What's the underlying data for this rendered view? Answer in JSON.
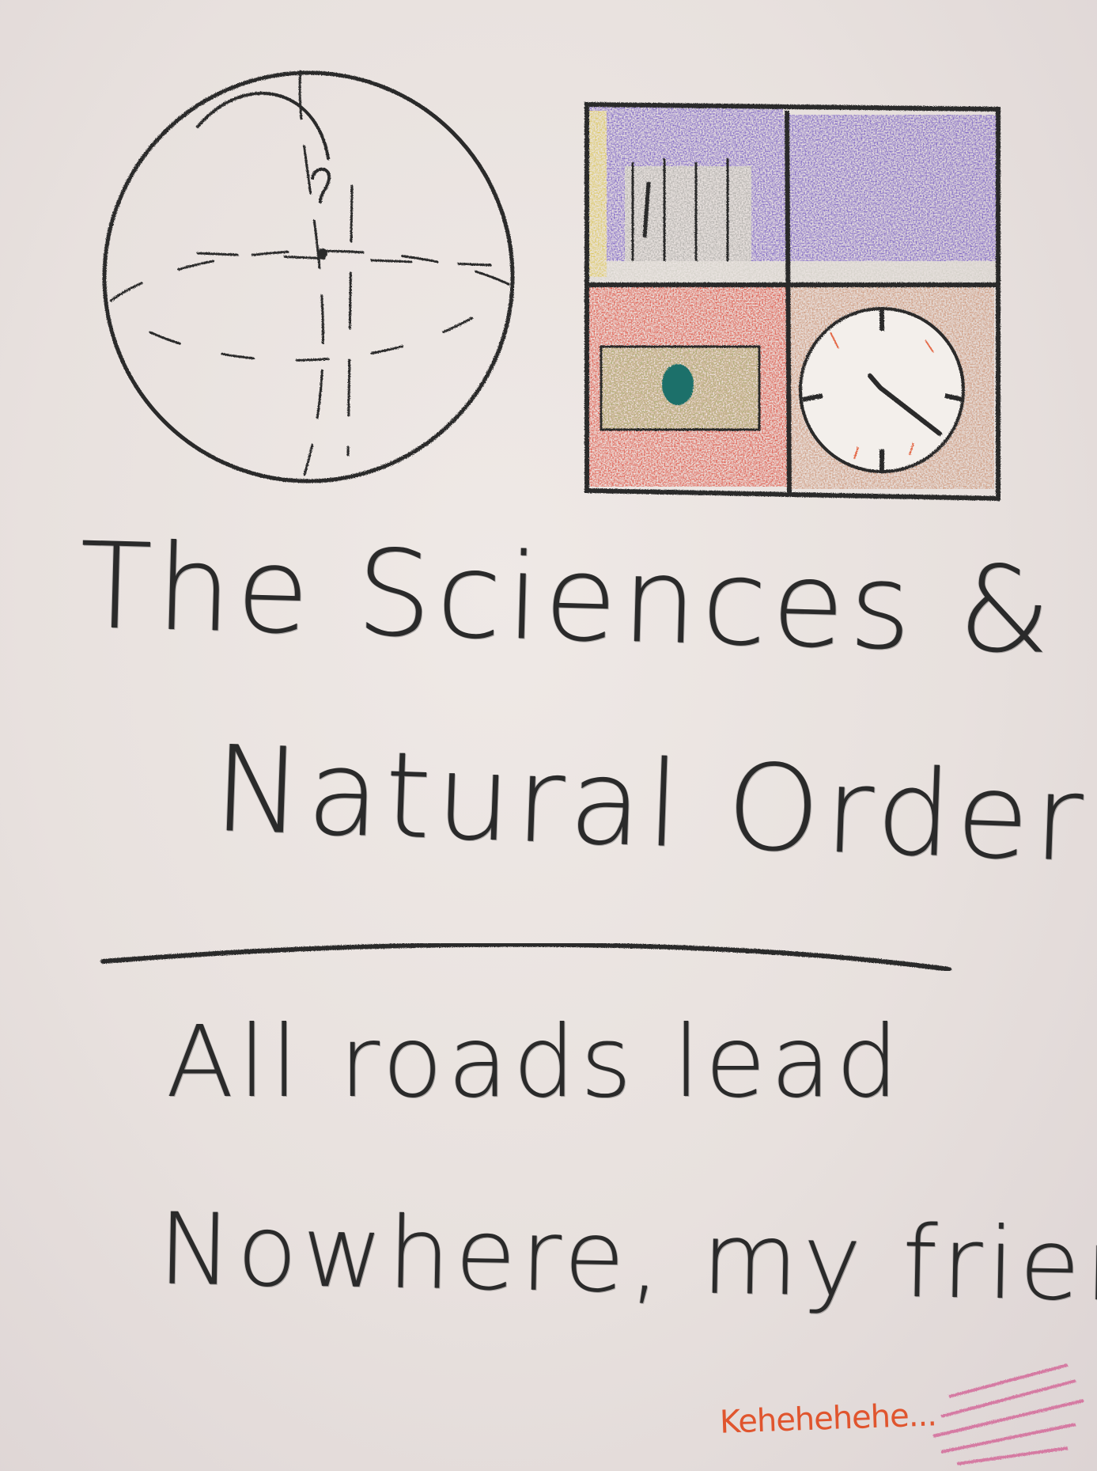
{
  "text": {
    "title_line_1": "The Sciences &",
    "title_line_2": "Natural Order",
    "motto_line_1": "All roads lead",
    "motto_line_2": "Nowhere, my friends...",
    "signature": "Kehehehehe..."
  },
  "colors": {
    "paper": "#e9e2df",
    "crayon_black": "#2a2a2a",
    "purple_sky": "#6a4fc0",
    "red_panel": "#dc3f2e",
    "green_note": "#9fd08a",
    "teal_dot": "#1f6f6a",
    "brown_panel": "#c98d6d",
    "signature_orange": "#e0552e",
    "scribble_pink": "#d46a9a"
  },
  "icons": {
    "globe": "crosshair-globe-icon",
    "panel_top_left": "bookshelf-icon",
    "panel_top_right": "night-sky-icon",
    "panel_bottom_left": "banknote-icon",
    "panel_bottom_right": "clock-icon"
  }
}
